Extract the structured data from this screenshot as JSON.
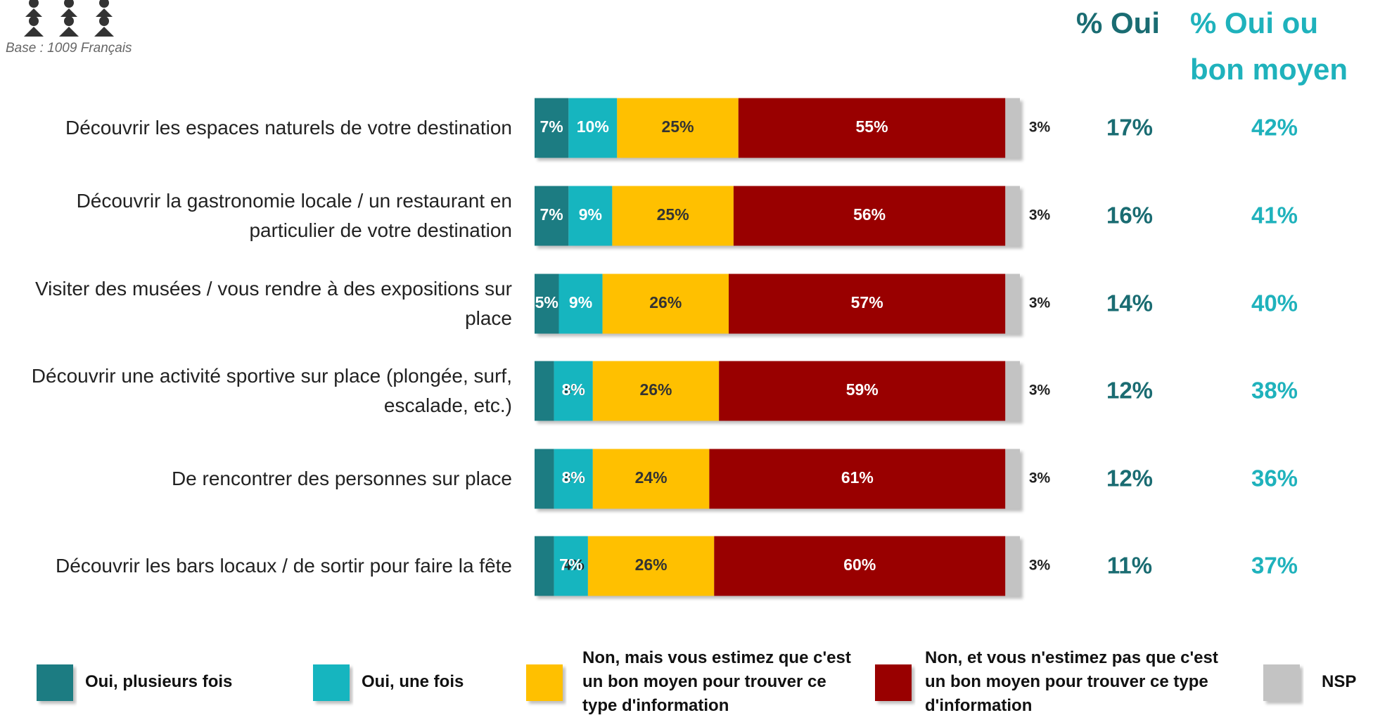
{
  "chart_data": {
    "type": "bar",
    "orientation": "horizontal",
    "stacked": true,
    "note": "Base : 1009 Français",
    "xlim": [
      0,
      100
    ],
    "categories": [
      "Découvrir les espaces naturels de votre destination",
      "Découvrir la gastronomie locale / un restaurant en particulier de votre destination",
      "Visiter des musées / vous rendre à des expositions sur place",
      "Découvrir une activité sportive sur place (plongée, surf, escalade, etc.)",
      "De rencontrer des personnes sur place",
      "Découvrir les bars locaux / de sortir pour faire la fête"
    ],
    "series": [
      {
        "name": "Oui, plusieurs fois",
        "color": "#1b7b82",
        "text_color": "#ffffff",
        "values": [
          7,
          7,
          5,
          4,
          4,
          4
        ],
        "value_labels": [
          "7%",
          "7%",
          "5%",
          "4%",
          "4%",
          "4%"
        ]
      },
      {
        "name": "Oui, une fois",
        "color": "#19b5bf",
        "text_color": "#ffffff",
        "values": [
          10,
          9,
          9,
          8,
          8,
          7
        ],
        "value_labels": [
          "10%",
          "9%",
          "9%",
          "8%",
          "8%",
          "7%"
        ]
      },
      {
        "name": "Non, mais vous estimez que c'est un bon moyen pour trouver ce type d'information",
        "color": "#ffc000",
        "text_color": "#333333",
        "values": [
          25,
          25,
          26,
          26,
          24,
          26
        ],
        "value_labels": [
          "25%",
          "25%",
          "26%",
          "26%",
          "24%",
          "26%"
        ]
      },
      {
        "name": "Non, et vous n'estimez pas que c'est un bon moyen pour trouver ce type d'information",
        "color": "#990000",
        "text_color": "#ffffff",
        "values": [
          55,
          56,
          57,
          59,
          61,
          60
        ],
        "value_labels": [
          "55%",
          "56%",
          "57%",
          "59%",
          "61%",
          "60%"
        ]
      },
      {
        "name": "NSP",
        "color": "#c3c3c3",
        "text_color": "#222222",
        "values": [
          3,
          3,
          3,
          3,
          3,
          3
        ],
        "value_labels": [
          "3%",
          "3%",
          "3%",
          "3%",
          "3%",
          "3%"
        ]
      }
    ],
    "columns": [
      {
        "title": "% Oui",
        "color": "#1a6c72",
        "values": [
          17,
          16,
          14,
          12,
          12,
          11
        ],
        "value_labels": [
          "17%",
          "16%",
          "14%",
          "12%",
          "12%",
          "11%"
        ]
      },
      {
        "title": "% Oui ou bon moyen",
        "color": "#1fb2bc",
        "values": [
          42,
          41,
          40,
          38,
          36,
          37
        ],
        "value_labels": [
          "42%",
          "41%",
          "40%",
          "38%",
          "36%",
          "37%"
        ]
      }
    ]
  }
}
